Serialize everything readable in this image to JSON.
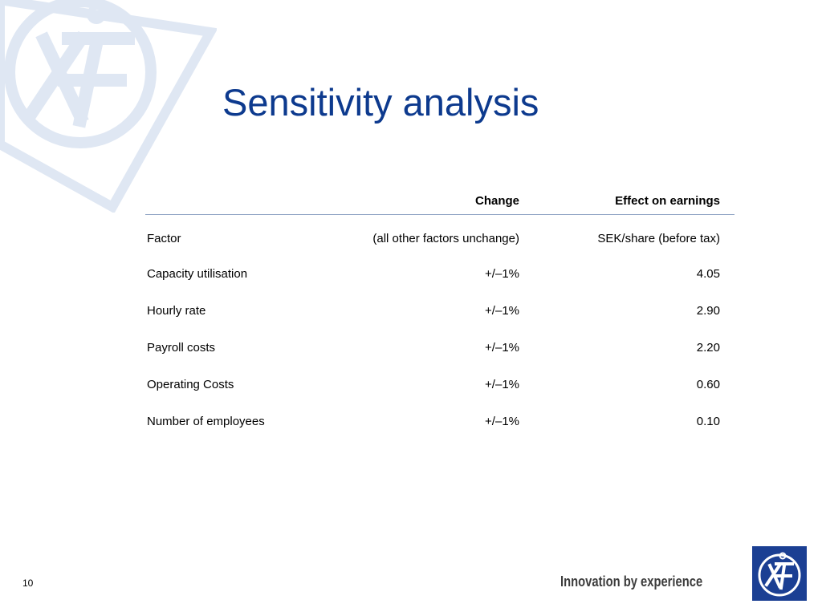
{
  "title": "Sensitivity analysis",
  "table": {
    "headers": {
      "factor": "",
      "change": "Change",
      "effect": "Effect on earnings"
    },
    "subheader": {
      "factor": "Factor",
      "change": "(all other factors unchange)",
      "effect": "SEK/share (before tax)"
    },
    "rows": [
      {
        "factor": "Capacity utilisation",
        "change": "+/–1%",
        "effect": "4.05"
      },
      {
        "factor": "Hourly rate",
        "change": "+/–1%",
        "effect": "2.90"
      },
      {
        "factor": "Payroll costs",
        "change": "+/–1%",
        "effect": "2.20"
      },
      {
        "factor": "Operating Costs",
        "change": "+/–1%",
        "effect": "0.60"
      },
      {
        "factor": "Number of employees",
        "change": "+/–1%",
        "effect": "0.10"
      }
    ]
  },
  "footer": {
    "page_number": "10",
    "tagline": "Innovation by experience"
  },
  "colors": {
    "title": "#0d3a8e",
    "logo_background": "#1b3f93",
    "watermark": "#dfe7f3"
  },
  "icons": {
    "watermark": "af-logo-watermark-icon",
    "logo": "af-logo-icon"
  }
}
